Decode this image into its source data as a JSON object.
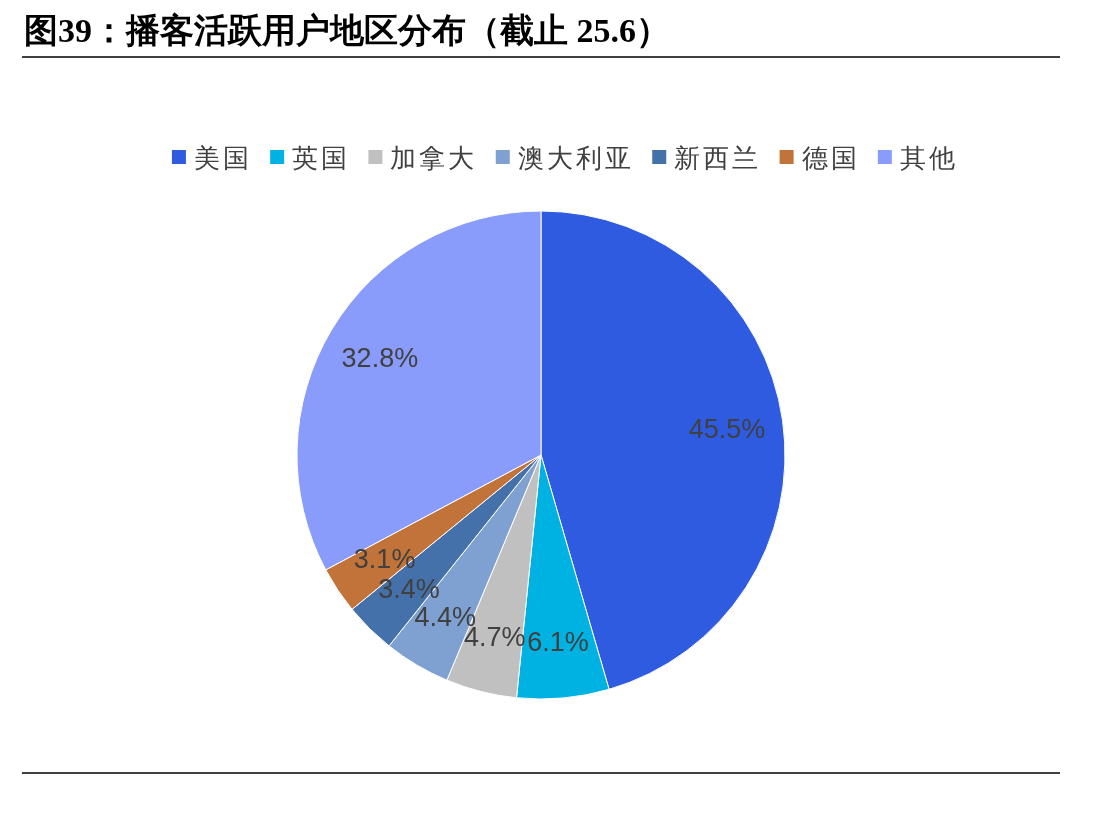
{
  "chart_data": {
    "type": "pie",
    "title": "图39：播客活跃用户地区分布（截止 25.6）",
    "categories": [
      "美国",
      "英国",
      "加拿大",
      "澳大利亚",
      "新西兰",
      "德国",
      "其他"
    ],
    "values": [
      45.5,
      6.1,
      4.7,
      4.4,
      3.4,
      3.1,
      32.8
    ],
    "colors": [
      "#2e5be0",
      "#00b2e2",
      "#c0c0c0",
      "#7ea1d1",
      "#4571aa",
      "#c2733a",
      "#8a9cfb"
    ],
    "value_labels": [
      "45.5%",
      "6.1%",
      "4.7%",
      "4.4%",
      "3.4%",
      "3.1%",
      "32.8%"
    ],
    "legend": "top"
  }
}
